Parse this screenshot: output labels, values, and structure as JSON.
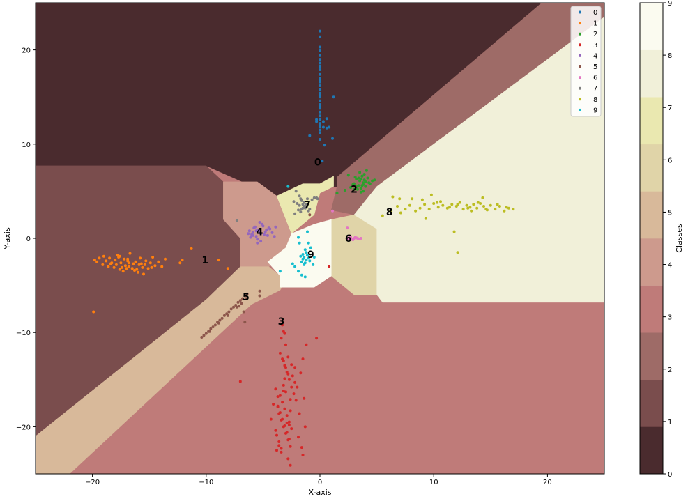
{
  "chart_data": {
    "type": "scatter",
    "title": "",
    "xlabel": "X-axis",
    "ylabel": "Y-axis",
    "xlim": [
      -25,
      25
    ],
    "ylim": [
      -25,
      25
    ],
    "xticks": [
      -20,
      -10,
      0,
      10,
      20
    ],
    "yticks": [
      -20,
      -10,
      0,
      10,
      20
    ],
    "grid": false,
    "legend_position": "top-right",
    "colorbar": {
      "label": "Classes",
      "ticks": [
        0,
        1,
        2,
        3,
        4,
        5,
        6,
        7,
        8,
        9
      ],
      "band_colors": [
        "#4a2b2e",
        "#7a4d4d",
        "#9e6b67",
        "#bf7b79",
        "#cd9a8d",
        "#d8b99a",
        "#e0d4a8",
        "#eae8b0",
        "#f1f0d9",
        "#fbfbf0"
      ]
    },
    "regions": [
      {
        "label": "0",
        "color": "#4a2b2e",
        "polygon": [
          [
            -25,
            25
          ],
          [
            19.5,
            25
          ],
          [
            1.5,
            6.5
          ],
          [
            1.5,
            5.5
          ],
          [
            -4,
            4.5
          ],
          [
            -10,
            7.7
          ],
          [
            -25,
            7.7
          ]
        ]
      },
      {
        "label": "1",
        "color": "#7a4d4d",
        "polygon": [
          [
            -25,
            7.7
          ],
          [
            -10,
            7.7
          ],
          [
            -8.5,
            6
          ],
          [
            -8.5,
            2
          ],
          [
            -7,
            0
          ],
          [
            -7,
            -3
          ],
          [
            -10,
            -6.5
          ],
          [
            -25,
            -21
          ]
        ]
      },
      {
        "label": "2",
        "color": "#9e6b67",
        "polygon": [
          [
            19.5,
            25
          ],
          [
            25,
            25
          ],
          [
            25,
            23.5
          ],
          [
            5,
            5.5
          ],
          [
            3,
            2.5
          ],
          [
            1,
            3
          ],
          [
            1.5,
            5.5
          ],
          [
            1.5,
            6.5
          ]
        ]
      },
      {
        "label": "4",
        "color": "#cd9a8d",
        "polygon": [
          [
            -8.5,
            6
          ],
          [
            -5.5,
            6
          ],
          [
            -3.8,
            4.5
          ],
          [
            -2.5,
            0.5
          ],
          [
            -3,
            -2
          ],
          [
            -4.5,
            -3
          ],
          [
            -7,
            -3
          ],
          [
            -7,
            0
          ],
          [
            -8.5,
            2
          ]
        ]
      },
      {
        "label": "5",
        "color": "#d8b99a",
        "polygon": [
          [
            -25,
            -21
          ],
          [
            -10,
            -6.5
          ],
          [
            -7,
            -3
          ],
          [
            -4.5,
            -3
          ],
          [
            -3,
            -4.5
          ],
          [
            -3.5,
            -5.5
          ],
          [
            -6,
            -7
          ],
          [
            -22,
            -25
          ],
          [
            -25,
            -25
          ]
        ]
      },
      {
        "label": "6",
        "color": "#e0d4a8",
        "polygon": [
          [
            1,
            2
          ],
          [
            3,
            2.5
          ],
          [
            5,
            1
          ],
          [
            5,
            -6
          ],
          [
            3,
            -6
          ],
          [
            1,
            -4
          ]
        ]
      },
      {
        "label": "7",
        "color": "#eae8b0",
        "polygon": [
          [
            -3.8,
            4.5
          ],
          [
            -1.5,
            5.8
          ],
          [
            0,
            5.8
          ],
          [
            1.2,
            6.6
          ],
          [
            1.2,
            5.5
          ],
          [
            0,
            4.8
          ],
          [
            -0.5,
            2.5
          ],
          [
            -2.5,
            0.5
          ]
        ]
      },
      {
        "label": "8",
        "color": "#f1f0d9",
        "polygon": [
          [
            25,
            23.5
          ],
          [
            25,
            -6.8
          ],
          [
            5.5,
            -6.8
          ],
          [
            5,
            -6
          ],
          [
            5,
            1
          ],
          [
            3,
            2.5
          ],
          [
            5,
            5.5
          ]
        ]
      },
      {
        "label": "9",
        "color": "#fbfbf0",
        "polygon": [
          [
            -2.5,
            0.5
          ],
          [
            -0.5,
            1.5
          ],
          [
            1,
            2
          ],
          [
            1,
            -4
          ],
          [
            -0.5,
            -5.2
          ],
          [
            -3.5,
            -5.2
          ],
          [
            -3.5,
            -4
          ],
          [
            -4.6,
            -2.5
          ],
          [
            -3,
            -1
          ]
        ]
      }
    ],
    "region_default_label": "3",
    "region_default_color": "#bf7b79",
    "series": [
      {
        "name": "0",
        "color": "#1f77b4",
        "x": [
          0,
          0,
          0,
          0,
          0,
          0,
          0,
          0,
          0,
          0,
          0,
          0,
          0,
          0,
          0,
          0,
          0,
          0,
          0,
          0,
          0,
          0,
          0,
          0,
          0,
          0,
          0.3,
          -0.3,
          0.6,
          0.8,
          1.2,
          -0.9,
          1.1,
          0.4,
          0.2,
          0,
          0,
          0,
          0.3,
          0.6,
          0,
          -0.3
        ],
        "y": [
          22,
          21.4,
          20.3,
          19.9,
          19.4,
          19,
          18.6,
          18.2,
          17.9,
          17.4,
          17,
          16.6,
          16.2,
          15.8,
          15.4,
          15,
          14.6,
          14.2,
          13.8,
          13.4,
          13,
          12.6,
          12.2,
          11.9,
          11.5,
          11.2,
          11.8,
          12.6,
          11.7,
          11.8,
          15,
          10.9,
          10.6,
          9.9,
          8.2,
          16.8,
          15.2,
          14,
          12.4,
          12.7,
          10.5,
          12.4
        ]
      },
      {
        "name": "1",
        "color": "#ff7f0e",
        "x": [
          -19.8,
          -19.6,
          -19.4,
          -19.1,
          -19,
          -18.8,
          -18.6,
          -18.5,
          -18.3,
          -18.1,
          -18,
          -17.9,
          -17.8,
          -17.6,
          -17.5,
          -17.3,
          -17.2,
          -17.1,
          -17,
          -16.9,
          -16.8,
          -16.7,
          -16.5,
          -16.4,
          -16.3,
          -16.2,
          -16,
          -15.9,
          -15.8,
          -15.6,
          -15.5,
          -15.3,
          -15.1,
          -14.9,
          -14.7,
          -14.5,
          -14.2,
          -13.9,
          -13.6,
          -12.3,
          -12.1,
          -11.3,
          -8.9,
          -8.1,
          -19.9,
          -18.4,
          -17.7,
          -17.4,
          -16.8,
          -16.1,
          -15.4,
          -14.8,
          -16.9,
          -17.6,
          -15.7
        ],
        "y": [
          -2.3,
          -2.5,
          -2.1,
          -2.8,
          -1.9,
          -2.4,
          -3,
          -2.1,
          -2.6,
          -3.1,
          -2.3,
          -2.8,
          -1.8,
          -3.3,
          -2.6,
          -3.5,
          -2.2,
          -2.9,
          -3.2,
          -2.4,
          -3,
          -1.6,
          -3.2,
          -2.7,
          -3.4,
          -2.5,
          -3.6,
          -2.8,
          -2.1,
          -3.1,
          -3.8,
          -2.4,
          -3.2,
          -2.6,
          -2,
          -2.9,
          -2.5,
          -3,
          -2.2,
          -2.6,
          -2.3,
          -1.1,
          -2.3,
          -3.2,
          -7.8,
          -2.7,
          -2,
          -3.1,
          -2.6,
          -3.3,
          -2.8,
          -3.1,
          -2.2,
          -1.9,
          -2.7
        ]
      },
      {
        "name": "2",
        "color": "#2ca02c",
        "x": [
          3,
          3.2,
          3.4,
          3.5,
          3.6,
          3.7,
          3.8,
          3.9,
          4,
          3.3,
          3.1,
          2.9,
          3.5,
          3.8,
          4.2,
          4.4,
          4.6,
          2.7,
          2.5,
          3.6,
          4.1,
          3.9,
          3.3,
          4.8,
          2.2,
          4,
          3.7,
          3.4,
          4.3,
          3,
          3.6,
          3.8,
          1.5
        ],
        "y": [
          5.8,
          6.3,
          5.6,
          6.1,
          5.3,
          6.6,
          5.9,
          6.2,
          5.5,
          5.2,
          6.5,
          5.7,
          7,
          5,
          6.4,
          5.8,
          6.1,
          5.4,
          6.7,
          4.9,
          7.2,
          6.8,
          5.5,
          6.2,
          5.1,
          6,
          5.6,
          6.4,
          5.9,
          5.2,
          6.3,
          5.7,
          4.8
        ]
      },
      {
        "name": "3",
        "color": "#d62728",
        "x": [
          -3.5,
          -3.3,
          -3.1,
          -2.9,
          -2.7,
          -2.5,
          -2.3,
          -2.1,
          -3.7,
          -3.6,
          -3.4,
          -3.2,
          -3,
          -2.8,
          -2.6,
          -2.4,
          -2.2,
          -3.9,
          -3.5,
          -3.3,
          -3.1,
          -2.9,
          -2.7,
          -2.5,
          -3.8,
          -3.6,
          -3.4,
          -3.2,
          -3,
          -2.8,
          -2.6,
          -3.7,
          -3.5,
          -3.3,
          -3.1,
          -2.9,
          -2.7,
          -3.6,
          -3.4,
          -3.2,
          -3,
          -2.8,
          -2.6,
          -3.4,
          -3.2,
          -3,
          -2.8,
          -3.3,
          -3.1,
          -1.2,
          -1.5,
          -1.7,
          -2,
          -1.4,
          -1.8,
          -1.3,
          -1.6,
          -0.3,
          -7,
          -4.1,
          -4.3,
          -2.5,
          -3.2,
          -2.9,
          -1.9,
          -1.5,
          -3.8,
          -3.9,
          -2.6,
          -3.7,
          -3.1,
          -2.2,
          -2.7,
          0.8
        ],
        "y": [
          -12.2,
          -12.8,
          -13.5,
          -14.2,
          -15,
          -15.8,
          -16.5,
          -17.2,
          -17.9,
          -18.6,
          -19.3,
          -20,
          -20.7,
          -21.4,
          -22.1,
          -14.6,
          -15.3,
          -16,
          -16.7,
          -17.4,
          -18.1,
          -18.8,
          -19.5,
          -20.2,
          -20.9,
          -21.6,
          -22.3,
          -13,
          -13.7,
          -14.4,
          -17.1,
          -17.8,
          -18.5,
          -19.2,
          -19.9,
          -20.6,
          -21.3,
          -22,
          -22.7,
          -15.6,
          -16.3,
          -23.4,
          -24.1,
          -10.6,
          -9.9,
          -11.3,
          -12.6,
          -9.2,
          -10.1,
          -11.3,
          -12.8,
          -14.3,
          -15.8,
          -17,
          -18.6,
          -20,
          -22.2,
          -10.6,
          -15.2,
          -17.6,
          -19.2,
          -13.4,
          -16.2,
          -19.6,
          -21.1,
          -23,
          -22.5,
          -20.4,
          -18.3,
          -16.8,
          -14.9,
          -13.7,
          -19.8,
          -3
        ]
      },
      {
        "name": "4",
        "color": "#9467bd",
        "x": [
          -6.2,
          -6,
          -5.8,
          -5.6,
          -5.4,
          -5.2,
          -5,
          -4.8,
          -4.6,
          -4.4,
          -6.1,
          -5.9,
          -5.7,
          -5.5,
          -5.3,
          -5.1,
          -4.9,
          -4.7,
          -6.3,
          -5.5,
          -5.3,
          -4.5,
          -3.9,
          -4,
          -5.2,
          -5.6,
          -5.9,
          -4.2
        ],
        "y": [
          0.8,
          0.4,
          1.1,
          0.2,
          0.9,
          0.5,
          1.3,
          0.7,
          0.3,
          1,
          0.1,
          0.6,
          1.2,
          -0.1,
          0.7,
          1.5,
          0.4,
          0.9,
          0.5,
          -0.5,
          1.7,
          1.1,
          1.2,
          0.2,
          -0.3,
          0.8,
          0.3,
          0.6
        ]
      },
      {
        "name": "5",
        "color": "#8c564b",
        "x": [
          -10.4,
          -10.2,
          -10,
          -9.8,
          -9.6,
          -9.4,
          -9.2,
          -9,
          -8.8,
          -8.6,
          -8.4,
          -8.2,
          -8,
          -7.8,
          -7.6,
          -7.4,
          -7.2,
          -7,
          -6.8,
          -6.6,
          -6.4,
          -9.7,
          -8.9,
          -8.1,
          -7.3,
          -6.5,
          -6.6,
          -6.7,
          -5.3,
          -5.3,
          -6.9,
          -7.1,
          -0.9
        ],
        "y": [
          -10.5,
          -10.3,
          -10.1,
          -9.9,
          -9.6,
          -9.4,
          -9.2,
          -8.9,
          -8.7,
          -8.5,
          -8.2,
          -8,
          -7.8,
          -7.5,
          -7.3,
          -7.1,
          -6.8,
          -6.6,
          -6.4,
          -6.1,
          -5.9,
          -9.9,
          -9,
          -8.2,
          -7.3,
          -6.4,
          -8.9,
          -7.8,
          -6.1,
          -5.6,
          -6.9,
          -7.2,
          2.5
        ]
      },
      {
        "name": "6",
        "color": "#e377c2",
        "x": [
          2.4,
          2.6,
          2.8,
          3,
          3.2,
          3.4,
          3.6,
          2.7,
          2.9,
          3.1,
          3.3,
          2.5,
          1.1,
          2.4
        ],
        "y": [
          0,
          0.1,
          -0.1,
          0,
          0.05,
          -0.05,
          0,
          0.15,
          -0.15,
          0.1,
          0,
          0,
          2.9,
          1.1
        ]
      },
      {
        "name": "7",
        "color": "#7f7f7f",
        "x": [
          -1.8,
          -1.6,
          -1.4,
          -1.2,
          -1,
          -1.7,
          -1.5,
          -1.3,
          -1.1,
          -1.9,
          -2,
          -2.2,
          -1.6,
          -1.4,
          -0.9,
          -0.7,
          -0.5,
          -0.3,
          -2.3,
          -1.2,
          -1.5,
          -1.8,
          -0.2,
          -1.7,
          -7.3,
          -2.1
        ],
        "y": [
          3.5,
          3.1,
          3.8,
          3.3,
          2.9,
          2.8,
          3.6,
          3.2,
          4.2,
          3,
          3.7,
          2.6,
          4,
          3.4,
          3.1,
          4.1,
          4.3,
          4.3,
          3.9,
          3.6,
          3.2,
          4.5,
          4.2,
          4.2,
          1.9,
          5
        ]
      },
      {
        "name": "8",
        "color": "#bcbd22",
        "x": [
          5.5,
          6.2,
          6.8,
          7.1,
          7.5,
          7.9,
          8.4,
          8.8,
          9.2,
          9.6,
          10,
          10.4,
          10.8,
          11.2,
          11.6,
          12,
          12.3,
          12.6,
          12.9,
          13.2,
          13.5,
          13.8,
          14.1,
          14.4,
          14.7,
          15,
          15.4,
          15.8,
          16.2,
          16.6,
          17,
          9.8,
          10.6,
          11.4,
          12.1,
          13,
          13.9,
          14.6,
          15.6,
          16.4,
          8.1,
          9,
          9.3,
          11.8,
          12.1,
          7,
          6.4,
          10.3,
          13.3,
          14.3
        ],
        "y": [
          2.4,
          2.9,
          3.4,
          2.7,
          3.1,
          3.5,
          2.9,
          3.2,
          3.6,
          3.1,
          3.7,
          3.3,
          3.5,
          3.2,
          3.6,
          3.4,
          3.8,
          3.1,
          3.5,
          3.3,
          3.6,
          3.2,
          3.7,
          3.4,
          3,
          3.5,
          3.1,
          3.4,
          2.9,
          3.2,
          3.1,
          4.6,
          3.9,
          3.3,
          3.6,
          3.2,
          3.8,
          3.1,
          3.6,
          3.3,
          4.2,
          4.1,
          2.1,
          0.7,
          -1.5,
          4.2,
          4.4,
          3.8,
          2.9,
          4.3
        ]
      },
      {
        "name": "9",
        "color": "#17becf",
        "x": [
          -1.4,
          -1.2,
          -1.5,
          -1.3,
          -1.1,
          -1,
          -1.6,
          -1.2,
          -1.4,
          -1.7,
          -0.9,
          -1.3,
          -1.8,
          -2.2,
          -1.9,
          -1.6,
          -0.8,
          -1.1,
          -0.6,
          -2.8,
          -1,
          -3.5,
          -1.3,
          -1.5,
          -2.4,
          -0.5,
          -1.9
        ],
        "y": [
          -2,
          -2.3,
          -1.7,
          -2.6,
          -1.8,
          -2.1,
          -2.5,
          -1.5,
          -2.8,
          -1.9,
          -2.4,
          -1.2,
          -0.5,
          -3,
          -3.5,
          -3.9,
          -1,
          0.7,
          -2.8,
          5.5,
          -0.5,
          -3.5,
          -4.1,
          -2.2,
          -2.7,
          -2,
          0.1
        ]
      }
    ],
    "cluster_labels": [
      {
        "text": "0",
        "x": -0.2,
        "y": 8.1
      },
      {
        "text": "1",
        "x": -10.1,
        "y": -2.3
      },
      {
        "text": "2",
        "x": 3,
        "y": 5.2
      },
      {
        "text": "3",
        "x": -3.4,
        "y": -8.8
      },
      {
        "text": "4",
        "x": -5.3,
        "y": 0.7
      },
      {
        "text": "5",
        "x": -6.5,
        "y": -6.2
      },
      {
        "text": "6",
        "x": 2.5,
        "y": 0
      },
      {
        "text": "7",
        "x": -1.1,
        "y": 3.6
      },
      {
        "text": "8",
        "x": 6.1,
        "y": 2.8
      },
      {
        "text": "9",
        "x": -0.8,
        "y": -1.7
      }
    ]
  }
}
